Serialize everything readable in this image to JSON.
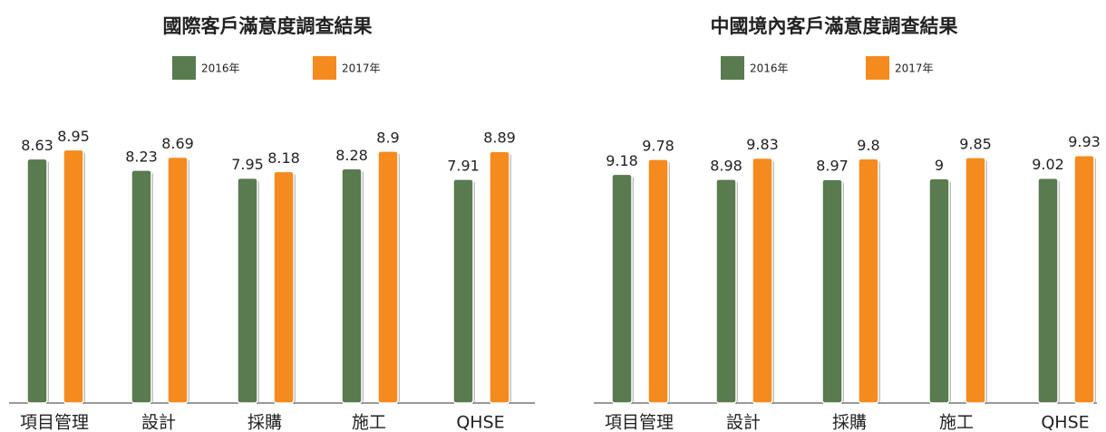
{
  "chart_data": [
    {
      "type": "bar",
      "title": "國際客戶滿意度調查結果",
      "categories": [
        "項目管理",
        "設計",
        "採購",
        "施工",
        "QHSE"
      ],
      "series": [
        {
          "name": "2016年",
          "color": "#5a7a50",
          "values": [
            8.63,
            8.23,
            7.95,
            8.28,
            7.91
          ]
        },
        {
          "name": "2017年",
          "color": "#f58a1f",
          "values": [
            8.95,
            8.69,
            8.18,
            8.9,
            8.89
          ]
        }
      ],
      "ylim": [
        0,
        9.6
      ]
    },
    {
      "type": "bar",
      "title": "中國境內客戶滿意度調查結果",
      "categories": [
        "項目管理",
        "設計",
        "採購",
        "施工",
        "QHSE"
      ],
      "series": [
        {
          "name": "2016年",
          "color": "#5a7a50",
          "values": [
            9.18,
            8.98,
            8.97,
            9,
            9.02
          ]
        },
        {
          "name": "2017年",
          "color": "#f58a1f",
          "values": [
            9.78,
            9.83,
            9.8,
            9.85,
            9.93
          ]
        }
      ],
      "ylim": [
        0,
        10.9
      ]
    }
  ]
}
